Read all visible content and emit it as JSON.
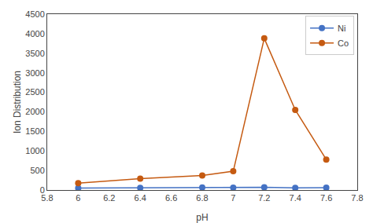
{
  "chart_data": {
    "type": "line",
    "x_label": "pH",
    "y_label": "Ion Distribution",
    "x": [
      6.0,
      6.4,
      6.8,
      7.0,
      7.2,
      7.4,
      7.6
    ],
    "series": [
      {
        "name": "Ni",
        "color": "#4472C4",
        "values": [
          50,
          55,
          65,
          60,
          70,
          55,
          60
        ]
      },
      {
        "name": "Co",
        "color": "#C55A11",
        "values": [
          175,
          290,
          370,
          480,
          3880,
          2050,
          780
        ]
      }
    ],
    "xlim": [
      5.8,
      7.8
    ],
    "xticks": [
      5.8,
      6,
      6.2,
      6.4,
      6.6,
      6.8,
      7,
      7.2,
      7.4,
      7.6,
      7.8
    ],
    "ylim": [
      0,
      4500
    ],
    "yticks": [
      0,
      500,
      1000,
      1500,
      2000,
      2500,
      3000,
      3500,
      4000,
      4500
    ],
    "grid": false,
    "legend": "upper right",
    "marker": "circle",
    "line_style": "solid"
  }
}
